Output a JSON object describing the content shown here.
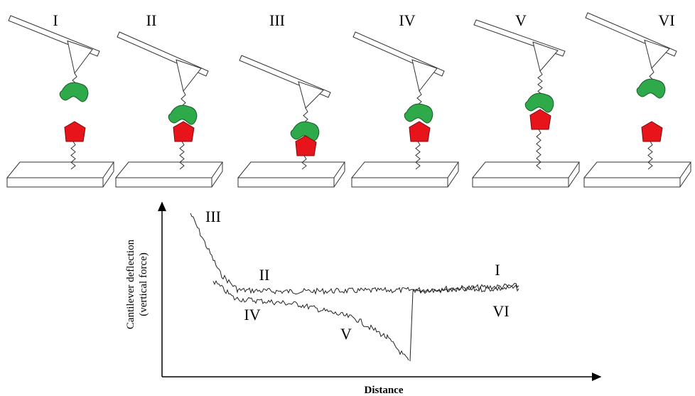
{
  "panels": [
    {
      "label": "I"
    },
    {
      "label": "II"
    },
    {
      "label": "III"
    },
    {
      "label": "IV"
    },
    {
      "label": "V"
    },
    {
      "label": "VI"
    }
  ],
  "plot": {
    "y_label": [
      "Cantilever deflection",
      "(vertical force)"
    ],
    "x_label": "Distance",
    "curve_labels": [
      {
        "text": "III"
      },
      {
        "text": "II"
      },
      {
        "text": "I"
      },
      {
        "text": "IV"
      },
      {
        "text": "V"
      },
      {
        "text": "VI"
      }
    ]
  }
}
